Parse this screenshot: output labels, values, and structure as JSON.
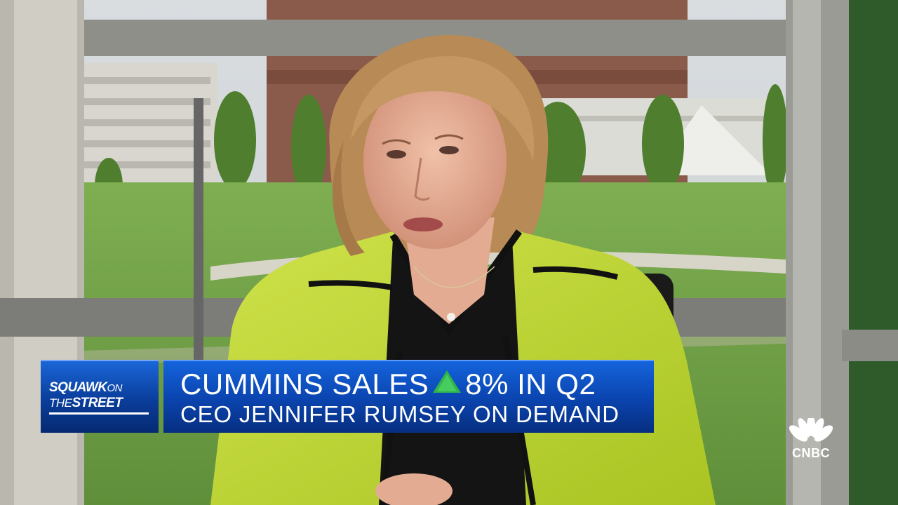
{
  "scene": {
    "icons": [
      "person-figure",
      "office-window-background"
    ],
    "colors": {
      "jacket": "#b9d430",
      "jacket_trim": "#111111",
      "hair": "#b88a55",
      "skin": "#e0a992",
      "lawn": "#6f9a45",
      "window_frame": "#8f8f8a"
    }
  },
  "lower_third": {
    "show_line1_a": "SQUAWK",
    "show_line1_b": "ON",
    "show_line2_a": "THE",
    "show_line2_b": "STREET",
    "headline_part1": "CUMMINS SALES",
    "headline_part2": "8% IN Q2",
    "subheadline": "CEO JENNIFER RUMSEY ON DEMAND",
    "arrow_icon": "up-arrow-icon",
    "colors": {
      "box_blue": "#0b46b2",
      "arrow_green": "#2fb34a"
    }
  },
  "network": {
    "name": "CNBC",
    "icon": "peacock-icon"
  }
}
